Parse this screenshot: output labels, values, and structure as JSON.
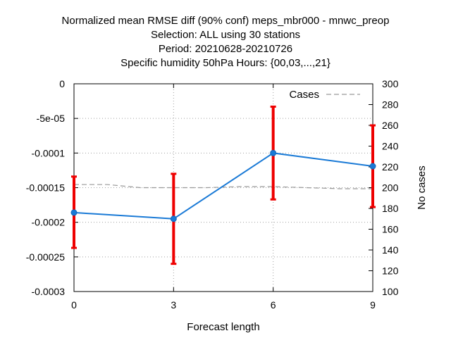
{
  "chart_data": {
    "type": "line",
    "title_lines": [
      "Normalized mean RMSE diff (90% conf) meps_mbr000 - mnwc_preop",
      "Selection: ALL using    30 stations",
      "Period: 20210628-20210726",
      "Specific humidity 50hPa   Hours: {00,03,...,21}"
    ],
    "xlabel": "Forecast length",
    "ylabel_right": "No cases",
    "x_ticks": [
      "0",
      "3",
      "6",
      "9"
    ],
    "y_ticks": [
      "0",
      "-5e-05",
      "-0.0001",
      "-0.00015",
      "-0.0002",
      "-0.00025",
      "-0.0003"
    ],
    "y2_ticks": [
      "300",
      "280",
      "260",
      "240",
      "220",
      "200",
      "180",
      "160",
      "140",
      "120",
      "100"
    ],
    "xlim": [
      0,
      9
    ],
    "ylim": [
      -0.0003,
      0
    ],
    "y2lim": [
      100,
      300
    ],
    "grid": true,
    "legend_position": "top-right",
    "series": [
      {
        "kind": "rmse-diff",
        "color": "#1a7ad6",
        "x": [
          0,
          3,
          6,
          9
        ],
        "y": [
          -0.000186,
          -0.000195,
          -0.0001,
          -0.000119
        ],
        "err_low": [
          -0.000237,
          -0.00026,
          -0.000167,
          -0.000178
        ],
        "err_high": [
          -0.000134,
          -0.00013,
          -3.3e-05,
          -6e-05
        ]
      },
      {
        "name": "Cases",
        "kind": "cases",
        "color": "#999999",
        "x": [
          0,
          1,
          2,
          3,
          4,
          5,
          6,
          7,
          8,
          9
        ],
        "y": [
          203,
          203,
          200,
          200,
          200,
          201,
          201,
          200,
          199,
          199
        ]
      }
    ],
    "errorbar_color": "#ee0000"
  }
}
